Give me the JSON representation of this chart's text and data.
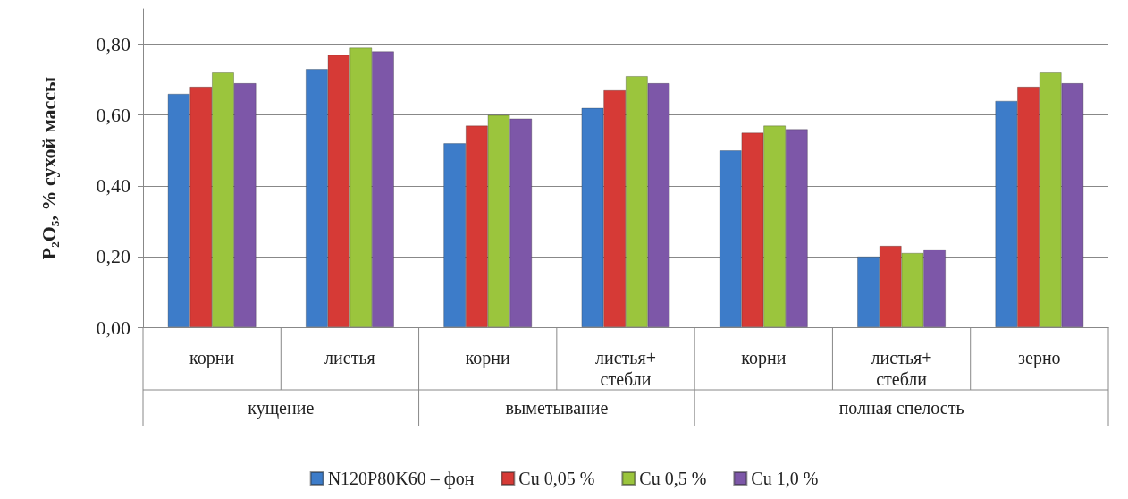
{
  "chart_data": {
    "type": "bar",
    "ylabel": "P₂O₅, % сухой массы",
    "categories": [
      "корни",
      "листья",
      "корни",
      "листья+\nстебли",
      "корни",
      "листья+\nстебли",
      "зерно"
    ],
    "annotations": [
      "кущение",
      "выметывание",
      "полная спелость"
    ],
    "series": [
      {
        "name": "N120P80K60 – фон",
        "color": "#3d7cc9",
        "values": [
          0.66,
          0.73,
          0.52,
          0.62,
          0.5,
          0.2,
          0.64
        ]
      },
      {
        "name": "Cu 0,05 %",
        "color": "#d63a36",
        "values": [
          0.68,
          0.77,
          0.57,
          0.67,
          0.55,
          0.23,
          0.68
        ]
      },
      {
        "name": "Cu 0,5 %",
        "color": "#9bc53d",
        "values": [
          0.72,
          0.79,
          0.6,
          0.71,
          0.57,
          0.21,
          0.72
        ]
      },
      {
        "name": "Cu 1,0 %",
        "color": "#7d57a8",
        "values": [
          0.69,
          0.78,
          0.59,
          0.69,
          0.56,
          0.22,
          0.69
        ]
      }
    ],
    "ylim": [
      0,
      0.9
    ],
    "yticks": [
      {
        "value": 0,
        "label": "0,00"
      },
      {
        "value": 0.2,
        "label": "0,20"
      },
      {
        "value": 0.4,
        "label": "0,40"
      },
      {
        "value": 0.6,
        "label": "0,60"
      },
      {
        "value": 0.8,
        "label": "0,80"
      }
    ],
    "grid": "y",
    "legend": "bottom"
  }
}
